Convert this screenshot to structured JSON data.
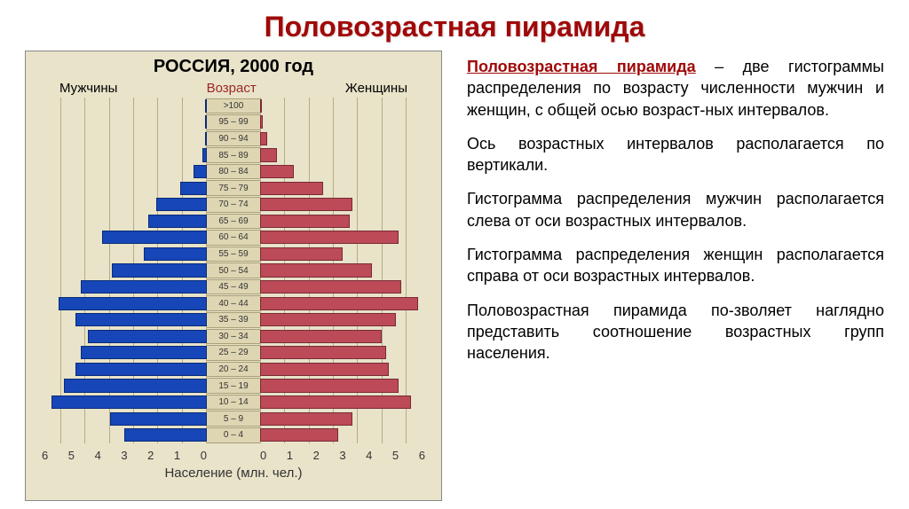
{
  "title": "Половозрастная пирамида",
  "chart": {
    "type": "population-pyramid",
    "title": "РОССИЯ, 2000 год",
    "label_male": "Мужчины",
    "label_female": "Женщины",
    "label_age": "Возраст",
    "x_label": "Население (млн. чел.)",
    "x_ticks": [
      6,
      5,
      4,
      3,
      2,
      1,
      0
    ],
    "x_max": 6.8,
    "age_bins": [
      ">100",
      "95 – 99",
      "90 – 94",
      "85 – 89",
      "80 – 84",
      "75 – 79",
      "70 – 74",
      "65 – 69",
      "60 – 64",
      "55 – 59",
      "50 – 54",
      "45 – 49",
      "40 – 44",
      "35 – 39",
      "30 – 34",
      "25 – 29",
      "20 – 24",
      "15 – 19",
      "10 – 14",
      "5 – 9",
      "0 – 4"
    ],
    "male_values": [
      0.02,
      0.04,
      0.09,
      0.2,
      0.55,
      1.1,
      2.1,
      2.4,
      4.3,
      2.6,
      3.9,
      5.2,
      6.1,
      5.4,
      4.9,
      5.2,
      5.4,
      5.9,
      6.4,
      4.0,
      3.4
    ],
    "female_values": [
      0.05,
      0.1,
      0.3,
      0.7,
      1.4,
      2.6,
      3.8,
      3.7,
      5.7,
      3.4,
      4.6,
      5.8,
      6.5,
      5.6,
      5.0,
      5.2,
      5.3,
      5.7,
      6.2,
      3.8,
      3.2
    ],
    "male_color": "#1646b8",
    "male_border": "#0a2b78",
    "female_color": "#bc4a57",
    "female_border": "#7a2b35",
    "background": "#e8e3c9",
    "axis_strip_bg": "#ded6b3",
    "grid_color": "#b5ad8a"
  },
  "text": {
    "term": "Половозрастная пирамида",
    "p1_rest": " – две гистограммы распределения по возрасту численности мужчин и женщин, с общей осью возраст-ных интервалов.",
    "p2": "Ось возрастных интервалов располагается по вертикали.",
    "p3": "Гистограмма распределения мужчин располагается слева от оси возрастных интервалов.",
    "p4": "Гистограмма распределения женщин располагается справа от оси возрастных интервалов.",
    "p5": "Половозрастная пирамида по-зволяет наглядно представить соотношение возрастных групп населения."
  }
}
